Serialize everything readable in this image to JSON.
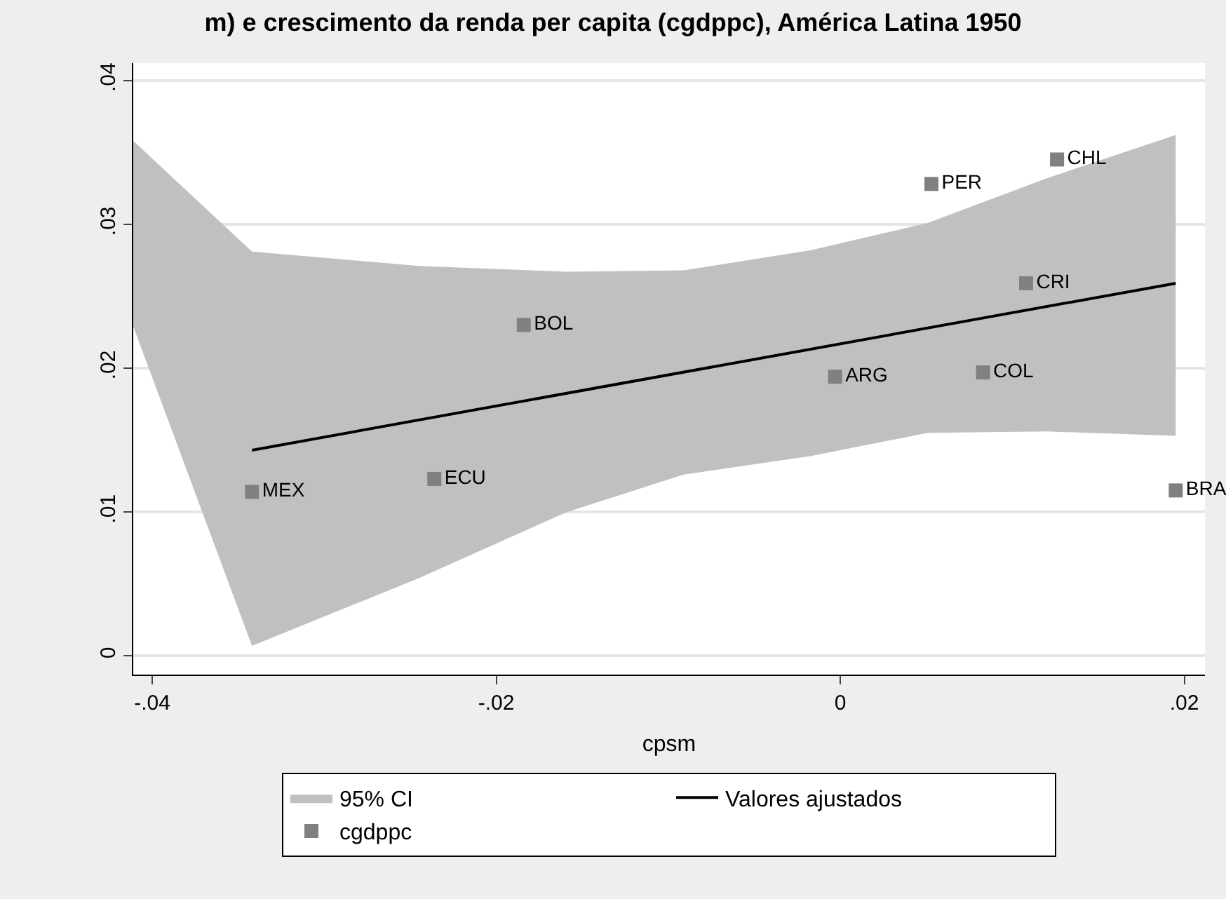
{
  "chart_data": {
    "type": "scatter",
    "title": "m) e crescimento da renda per capita (cgdppc), América Latina 1950",
    "xlabel": "cpsm",
    "series": [
      {
        "name": "95% CI",
        "type": "line",
        "color": "#c0c0c0",
        "x": [
          -0.0411,
          -0.0342,
          -0.0245,
          -0.0159,
          -0.0091,
          -0.0017,
          0.0051,
          0.012,
          0.0195
        ],
        "values": [
          null,
          null,
          null,
          null,
          null,
          null,
          null,
          null,
          null
        ],
        "upper": [
          0.0358,
          0.0281,
          0.0271,
          0.0267,
          0.0268,
          0.0282,
          0.0301,
          0.0332,
          0.0362
        ],
        "lower": [
          0.0229,
          0.0007,
          0.0054,
          0.01,
          0.0126,
          0.0139,
          0.0155,
          0.0156,
          0.0153
        ]
      },
      {
        "name": "Valores ajustados",
        "type": "line",
        "color": "#000000",
        "x": [
          -0.0342,
          0.0195
        ],
        "values": [
          0.0143,
          0.0259
        ]
      },
      {
        "name": "cgdppc",
        "color": "#808080",
        "marker": "square",
        "x": [
          -0.0342,
          -0.0236,
          -0.0184,
          -0.0003,
          0.0083,
          0.0108,
          0.0053,
          0.0126,
          0.0195
        ],
        "values": [
          0.0114,
          0.0123,
          0.023,
          0.0194,
          0.0197,
          0.0259,
          0.0328,
          0.0345,
          0.0115
        ],
        "value_labels": [
          "MEX",
          "ECU",
          "BOL",
          "ARG",
          "COL",
          "CRI",
          "PER",
          "CHL",
          "BRA"
        ]
      }
    ],
    "xlim": [
      -0.0411,
      0.0212
    ],
    "ylim": [
      -0.0013,
      0.0412
    ],
    "xticks": [
      {
        "value": -0.04,
        "label": "-.04"
      },
      {
        "value": -0.02,
        "label": "-.02"
      },
      0,
      {
        "value": 0.02,
        "label": ".02"
      }
    ],
    "yticks": [
      0,
      {
        "value": 0.01,
        "label": ".01"
      },
      {
        "value": 0.02,
        "label": ".02"
      },
      {
        "value": 0.03,
        "label": ".03"
      },
      {
        "value": 0.04,
        "label": ".04"
      }
    ],
    "grid": "y",
    "legend": "bottom"
  }
}
